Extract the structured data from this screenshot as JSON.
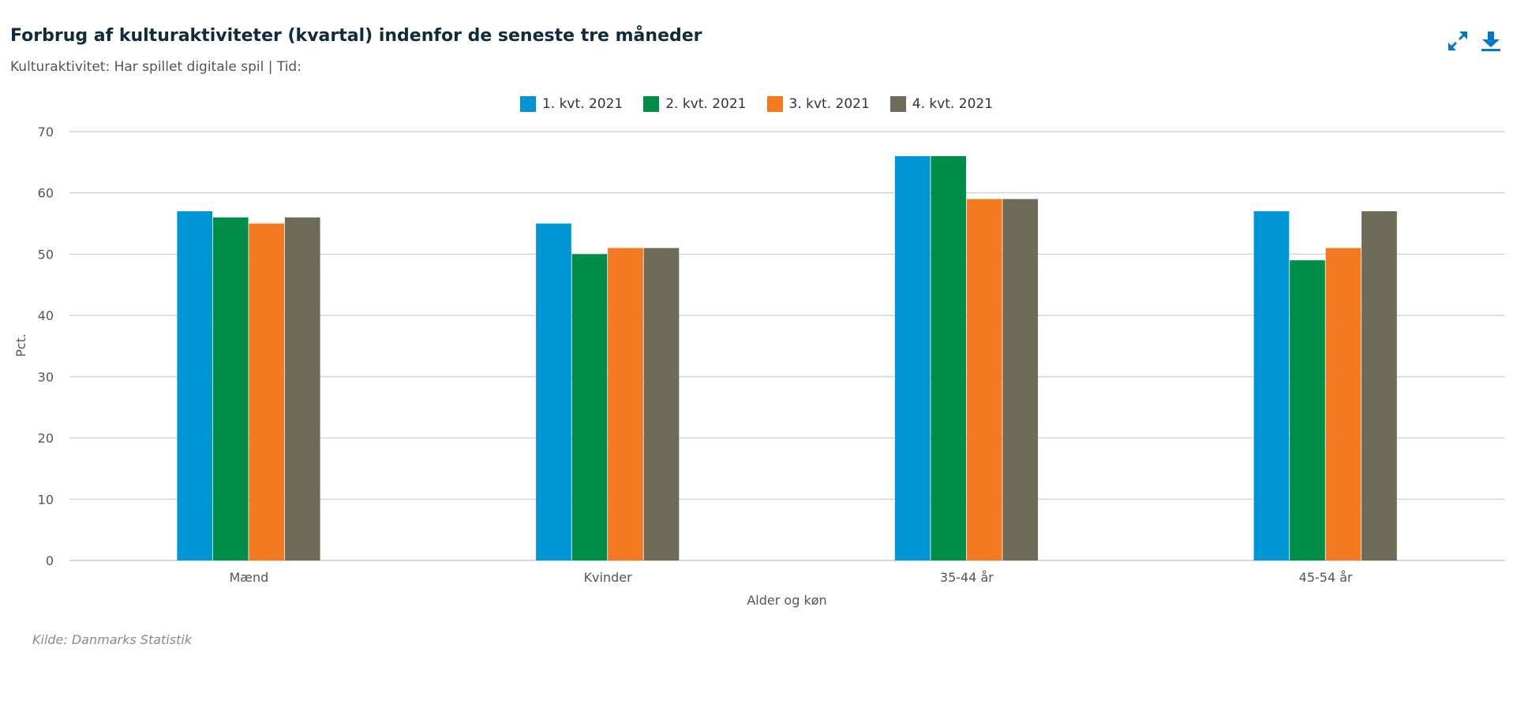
{
  "header": {
    "title": "Forbrug af kulturaktiviteter (kvartal) indenfor de seneste tre måneder",
    "subtitle": "Kulturaktivitet: Har spillet digitale spil | Tid:"
  },
  "toolbar": {
    "fullscreen_icon": "expand-arrows-icon",
    "download_icon": "download-icon",
    "icon_color": "#0077c8"
  },
  "source": "Kilde: Danmarks Statistik",
  "chart_data": {
    "type": "bar",
    "title": "Forbrug af kulturaktiviteter (kvartal) indenfor de seneste tre måneder",
    "subtitle": "Kulturaktivitet: Har spillet digitale spil | Tid:",
    "xlabel": "Alder og køn",
    "ylabel": "Pct.",
    "ylim": [
      0,
      70
    ],
    "yticks": [
      0,
      10,
      20,
      30,
      40,
      50,
      60,
      70
    ],
    "grid": true,
    "legend_position": "top-center",
    "categories": [
      "Mænd",
      "Kvinder",
      "35-44 år",
      "45-54 år"
    ],
    "series": [
      {
        "name": "1. kvt. 2021",
        "color": "#0096d6",
        "values": [
          57,
          55,
          66,
          57
        ]
      },
      {
        "name": "2. kvt. 2021",
        "color": "#008d48",
        "values": [
          56,
          50,
          66,
          49
        ]
      },
      {
        "name": "3. kvt. 2021",
        "color": "#f47920",
        "values": [
          55,
          51,
          59,
          51
        ]
      },
      {
        "name": "4. kvt. 2021",
        "color": "#6e6b58",
        "values": [
          56,
          51,
          59,
          57
        ]
      }
    ]
  }
}
